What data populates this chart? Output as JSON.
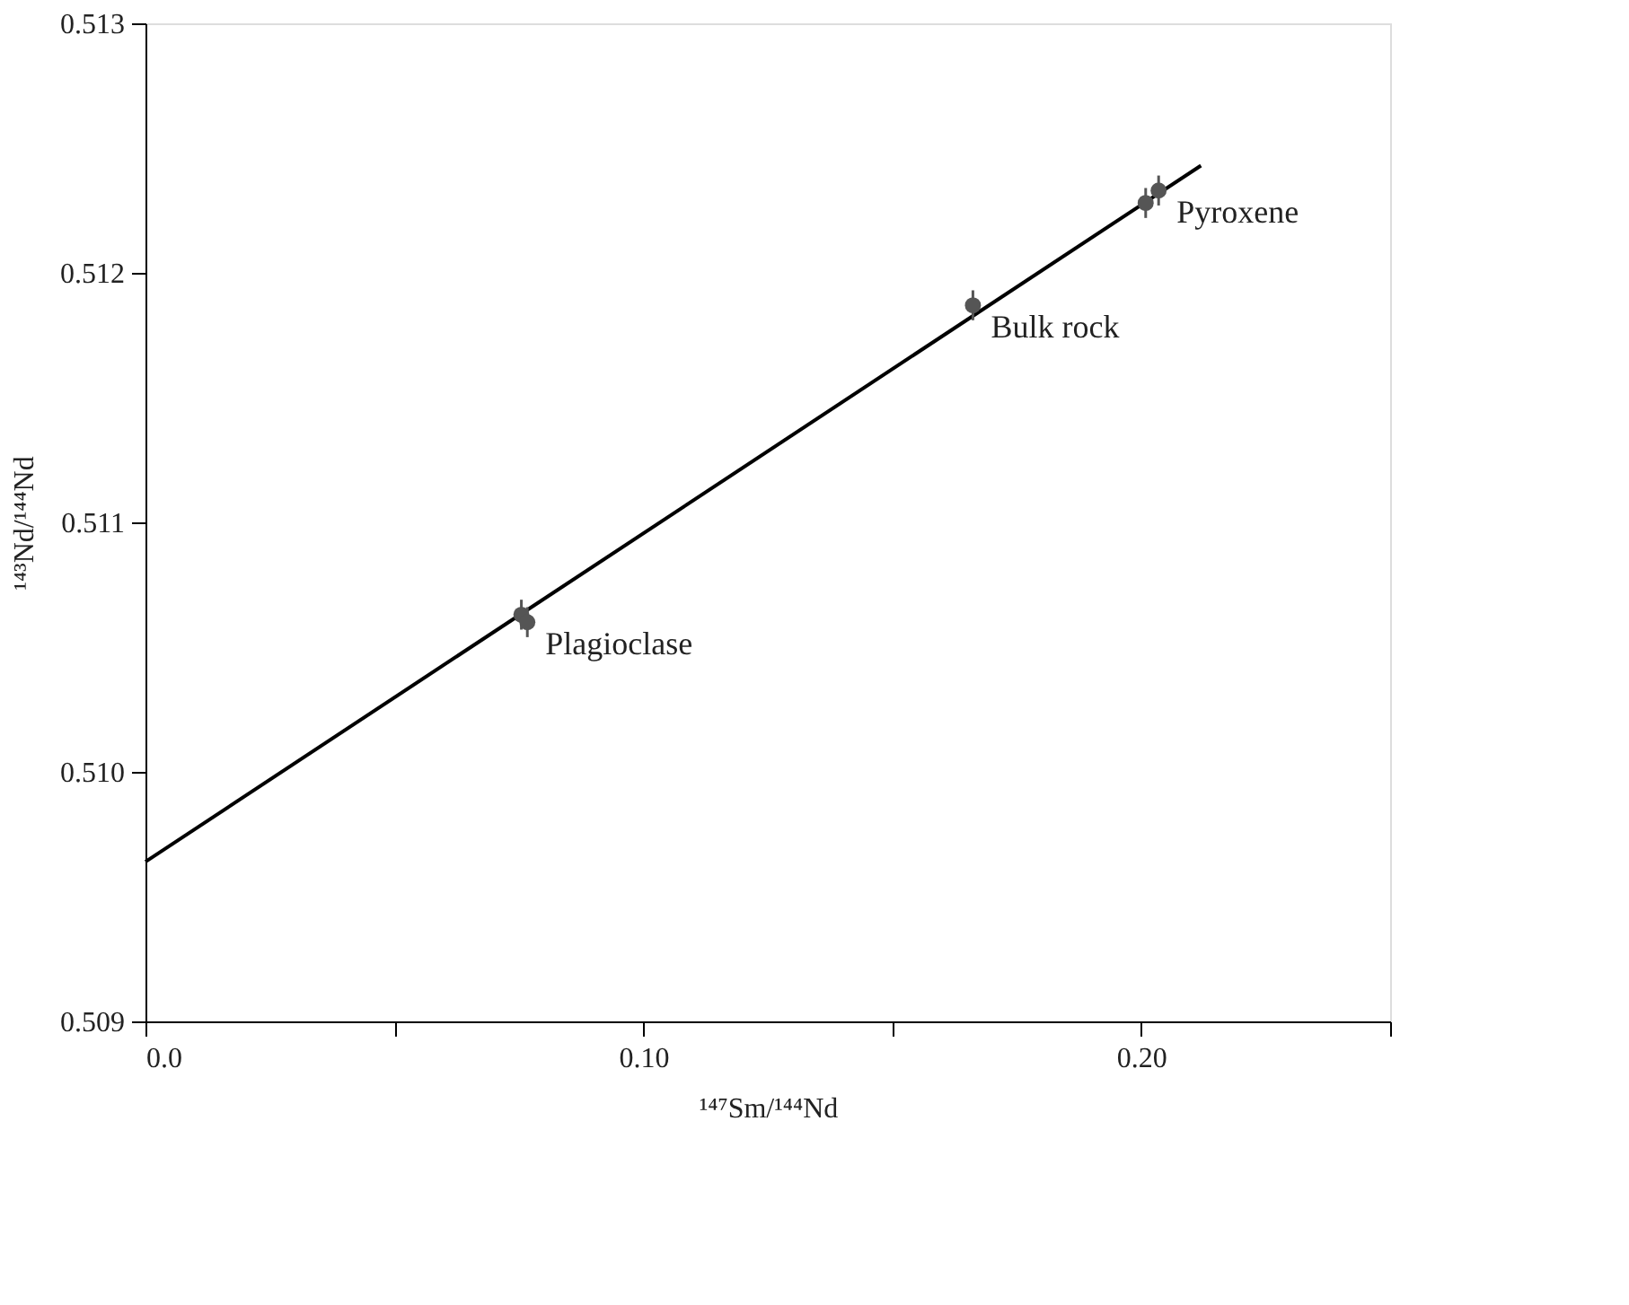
{
  "chart_data": {
    "type": "scatter",
    "xlabel": "¹⁴⁷Sm/¹⁴⁴Nd",
    "ylabel": "¹⁴³Nd/¹⁴⁴Nd",
    "series": [
      {
        "type": "line",
        "color": "#000000",
        "x": [
          0.0,
          0.212
        ],
        "values": [
          0.50964,
          0.51243
        ]
      },
      {
        "marker": "circle",
        "color": "#555555",
        "x": [
          0.0755,
          0.0767,
          0.1662,
          0.2009,
          0.2035
        ],
        "values": [
          0.51063,
          0.5106,
          0.51187,
          0.51228,
          0.51233
        ],
        "errors": [
          6e-05,
          6e-05,
          6e-05,
          6e-05,
          6e-05
        ]
      }
    ],
    "annotations": [
      {
        "text": "Plagioclase",
        "x": 0.0767,
        "y": 0.5106
      },
      {
        "text": "Bulk rock",
        "x": 0.1662,
        "y": 0.51187
      },
      {
        "text": "Pyroxene",
        "x": 0.2035,
        "y": 0.51233
      }
    ],
    "xlim": [
      0.0,
      0.25
    ],
    "xticks": [
      {
        "value": 0.0,
        "label": "0.0"
      },
      {
        "value": 0.05,
        "label": null
      },
      {
        "value": 0.1,
        "label": "0.10"
      },
      {
        "value": 0.15,
        "label": null
      },
      {
        "value": 0.2,
        "label": "0.20"
      },
      {
        "value": 0.25,
        "label": null
      }
    ],
    "ylim": [
      0.509,
      0.513
    ],
    "yticks": [
      0.509,
      {
        "value": 0.51,
        "label": "0.510"
      },
      0.511,
      0.512,
      0.513
    ],
    "grid": false
  }
}
